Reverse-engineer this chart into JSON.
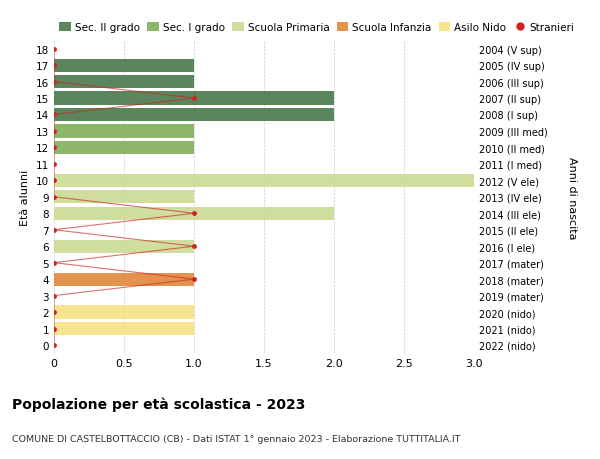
{
  "ages": [
    0,
    1,
    2,
    3,
    4,
    5,
    6,
    7,
    8,
    9,
    10,
    11,
    12,
    13,
    14,
    15,
    16,
    17,
    18
  ],
  "right_labels": [
    "2022 (nido)",
    "2021 (nido)",
    "2020 (nido)",
    "2019 (mater)",
    "2018 (mater)",
    "2017 (mater)",
    "2016 (I ele)",
    "2015 (II ele)",
    "2014 (III ele)",
    "2013 (IV ele)",
    "2012 (V ele)",
    "2011 (I med)",
    "2010 (II med)",
    "2009 (III med)",
    "2008 (I sup)",
    "2007 (II sup)",
    "2006 (III sup)",
    "2005 (IV sup)",
    "2004 (V sup)"
  ],
  "bar_values": [
    0,
    1,
    1,
    0,
    1,
    0,
    1,
    0,
    2,
    1,
    3,
    0,
    1,
    1,
    2,
    2,
    1,
    1,
    0
  ],
  "bar_colors": [
    "#f5e17a",
    "#f5e17a",
    "#f5e17a",
    "#e08030",
    "#e08030",
    "#e08030",
    "#c8d98c",
    "#c8d98c",
    "#c8d98c",
    "#c8d98c",
    "#c8d98c",
    "#7aaa50",
    "#7aaa50",
    "#7aaa50",
    "#3d7040",
    "#3d7040",
    "#3d7040",
    "#3d7040",
    "#3d7040"
  ],
  "stranieri_values": [
    0,
    0,
    0,
    0,
    1,
    0,
    1,
    0,
    1,
    0,
    0,
    0,
    0,
    0,
    0,
    1,
    0,
    0,
    0
  ],
  "legend_labels": [
    "Sec. II grado",
    "Sec. I grado",
    "Scuola Primaria",
    "Scuola Infanzia",
    "Asilo Nido",
    "Stranieri"
  ],
  "legend_colors": [
    "#3d7040",
    "#7aaa50",
    "#c8d98c",
    "#e08030",
    "#f5e17a",
    "#cc2222"
  ],
  "title": "Popolazione per età scolastica - 2023",
  "subtitle": "COMUNE DI CASTELBOTTACCIO (CB) - Dati ISTAT 1° gennaio 2023 - Elaborazione TUTTITALIA.IT",
  "ylabel_left": "Età alunni",
  "ylabel_right": "Anni di nascita",
  "xlim": [
    0,
    3.0
  ],
  "ylim": [
    -0.5,
    18.5
  ],
  "bar_height": 0.8,
  "stranieri_color": "#cc2222",
  "grid_color": "#cccccc",
  "bg_color": "#ffffff",
  "xticks": [
    0,
    0.5,
    1.0,
    1.5,
    2.0,
    2.5,
    3.0
  ],
  "xtick_labels": [
    "0",
    "0.5",
    "1.0",
    "1.5",
    "2.0",
    "2.5",
    "3.0"
  ]
}
